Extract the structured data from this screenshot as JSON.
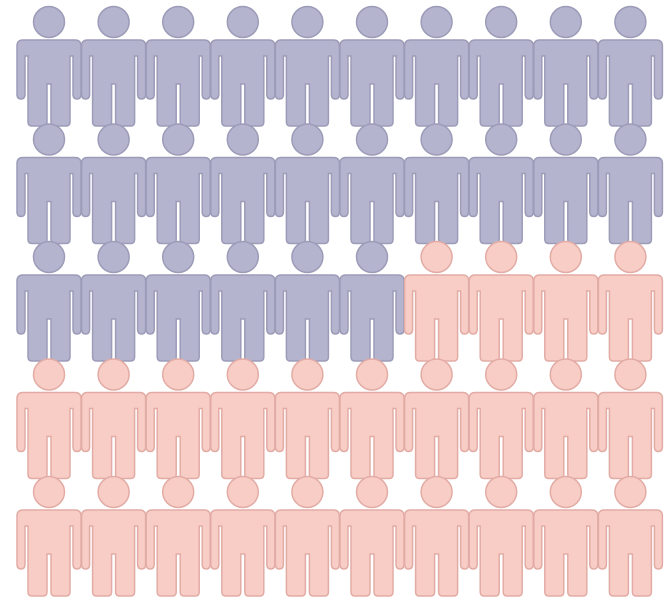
{
  "chart_data": {
    "type": "pictogram",
    "columns": 10,
    "values": [
      26,
      24
    ],
    "colors": [
      "#b4b4cf",
      "#f8cdc6"
    ],
    "strokes": [
      "#9c9cb8",
      "#e2aca5"
    ]
  }
}
